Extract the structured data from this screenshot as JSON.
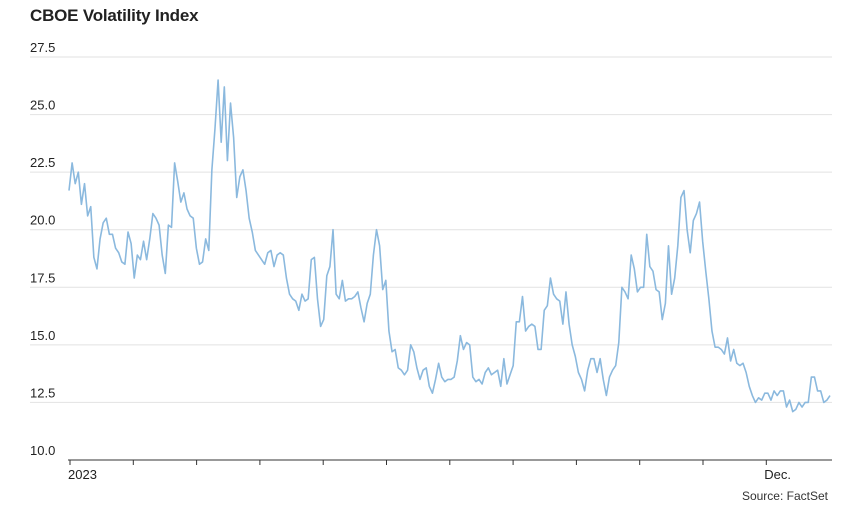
{
  "chart_data": {
    "type": "line",
    "title": "CBOE Volatility Index",
    "source": "Source: FactSet",
    "xlabel": "",
    "ylabel": "",
    "ylim": [
      10.0,
      27.5
    ],
    "yticks": [
      "10.0",
      "12.5",
      "15.0",
      "17.5",
      "20.0",
      "22.5",
      "25.0",
      "27.5"
    ],
    "xticks": [
      "2023",
      "",
      "",
      "",
      "",
      "",
      "",
      "",
      "",
      "",
      "",
      "Dec."
    ],
    "grid": true,
    "series": [
      {
        "name": "",
        "color": "#8bb9de",
        "values": [
          21.7,
          22.9,
          22.0,
          22.5,
          21.1,
          22.0,
          20.6,
          21.0,
          18.8,
          18.3,
          19.6,
          20.3,
          20.5,
          19.8,
          19.8,
          19.2,
          19.0,
          18.6,
          18.5,
          19.9,
          19.4,
          17.9,
          18.9,
          18.7,
          19.5,
          18.7,
          19.6,
          20.7,
          20.5,
          20.2,
          18.9,
          18.1,
          20.2,
          20.1,
          22.9,
          22.1,
          21.2,
          21.6,
          20.9,
          20.6,
          20.5,
          19.2,
          18.5,
          18.6,
          19.6,
          19.1,
          22.6,
          24.4,
          26.5,
          23.8,
          26.2,
          23.0,
          25.5,
          24.0,
          21.4,
          22.3,
          22.6,
          21.7,
          20.5,
          19.9,
          19.1,
          18.9,
          18.7,
          18.5,
          19.0,
          19.1,
          18.4,
          18.9,
          19.0,
          18.9,
          17.9,
          17.2,
          17.0,
          16.9,
          16.5,
          17.2,
          16.9,
          17.0,
          18.7,
          18.8,
          17.0,
          15.8,
          16.1,
          18.0,
          18.4,
          20.0,
          17.2,
          17.0,
          17.8,
          16.9,
          17.0,
          17.0,
          17.1,
          17.3,
          16.6,
          16.0,
          16.8,
          17.2,
          18.9,
          20.0,
          19.3,
          17.4,
          17.8,
          15.6,
          14.7,
          14.8,
          14.0,
          13.9,
          13.7,
          13.9,
          15.0,
          14.7,
          14.0,
          13.5,
          13.9,
          14.0,
          13.2,
          12.9,
          13.5,
          14.2,
          13.6,
          13.4,
          13.5,
          13.5,
          13.6,
          14.3,
          15.4,
          14.8,
          15.1,
          15.0,
          13.6,
          13.4,
          13.5,
          13.3,
          13.8,
          14.0,
          13.7,
          13.8,
          13.9,
          13.2,
          14.4,
          13.3,
          13.7,
          14.1,
          16.0,
          16.0,
          17.1,
          15.6,
          15.8,
          15.9,
          15.8,
          14.8,
          14.8,
          16.5,
          16.7,
          17.9,
          17.2,
          17.0,
          16.9,
          15.9,
          17.3,
          15.9,
          15.0,
          14.5,
          13.8,
          13.5,
          13.0,
          13.9,
          14.4,
          14.4,
          13.8,
          14.4,
          13.5,
          12.8,
          13.6,
          13.9,
          14.1,
          15.1,
          17.5,
          17.3,
          17.0,
          18.9,
          18.3,
          17.3,
          17.5,
          17.5,
          19.8,
          18.4,
          18.2,
          17.4,
          17.3,
          16.1,
          16.8,
          19.3,
          17.2,
          17.9,
          19.3,
          21.4,
          21.7,
          20.0,
          19.0,
          20.4,
          20.7,
          21.2,
          19.5,
          18.2,
          17.0,
          15.6,
          14.9,
          14.9,
          14.8,
          14.6,
          15.3,
          14.3,
          14.8,
          14.2,
          14.1,
          14.2,
          13.8,
          13.2,
          12.8,
          12.5,
          12.7,
          12.6,
          12.9,
          12.9,
          12.6,
          13.0,
          12.8,
          13.0,
          13.0,
          12.3,
          12.6,
          12.1,
          12.2,
          12.5,
          12.3,
          12.5,
          12.5,
          13.6,
          13.6,
          13.0,
          13.0,
          12.5,
          12.6,
          12.8
        ]
      }
    ]
  }
}
